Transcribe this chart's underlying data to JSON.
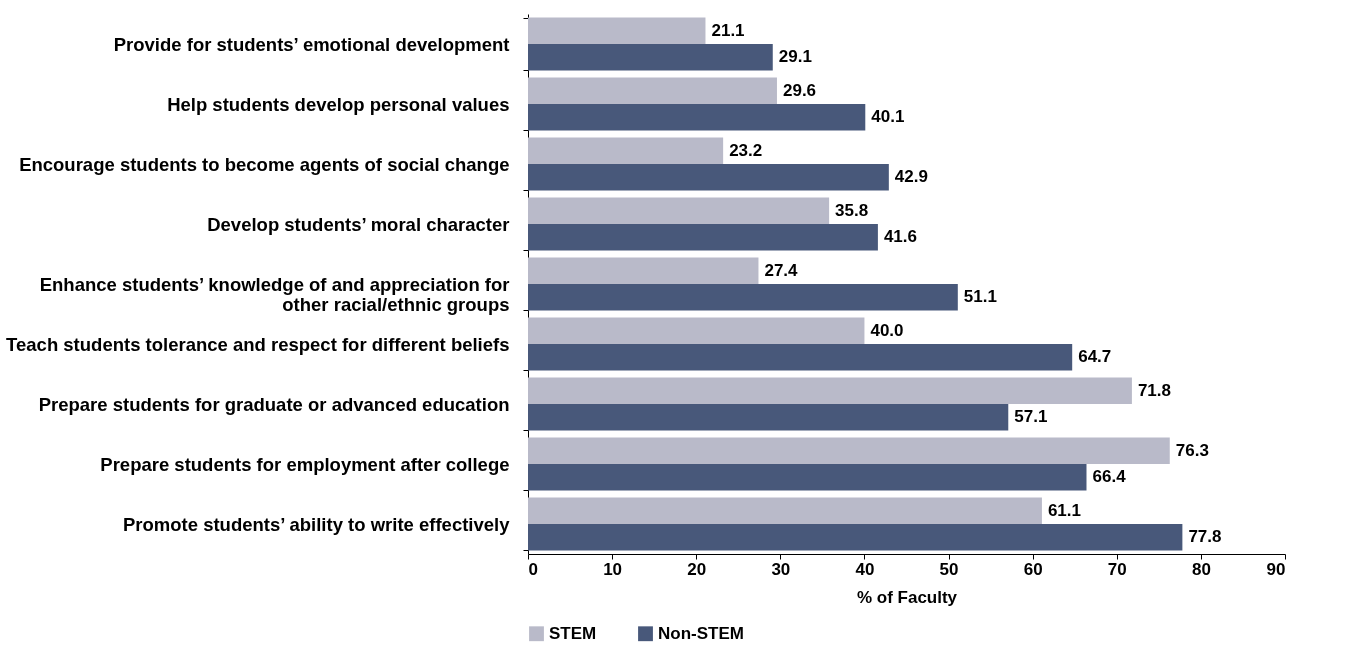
{
  "chart_data": {
    "type": "bar",
    "orientation": "horizontal",
    "xlabel": "% of Faculty",
    "categories": [
      "Provide for students’ emotional development",
      "Help students develop personal values",
      "Encourage students to become agents of social change",
      "Develop students’ moral character",
      "Enhance students’ knowledge of and appreciation for\nother racial/ethnic groups",
      "Teach students tolerance and respect for different beliefs",
      "Prepare students for graduate or advanced education",
      "Prepare students for employment after college",
      "Promote students’ ability to write effectively"
    ],
    "series": [
      {
        "name": "STEM",
        "color": "#b9bac9",
        "values": [
          21.1,
          29.6,
          23.2,
          35.8,
          27.4,
          40.0,
          71.8,
          76.3,
          61.1
        ]
      },
      {
        "name": "Non-STEM",
        "color": "#48587a",
        "values": [
          29.1,
          40.1,
          42.9,
          41.6,
          51.1,
          64.7,
          57.1,
          66.4,
          77.8
        ]
      }
    ],
    "value_labels": [
      [
        "21.1",
        "29.6",
        "23.2",
        "35.8",
        "27.4",
        "40.0",
        "71.8",
        "76.3",
        "61.1"
      ],
      [
        "29.1",
        "40.1",
        "42.9",
        "41.6",
        "51.1",
        "64.7",
        "57.1",
        "66.4",
        "77.8"
      ]
    ],
    "xlim": [
      0,
      90
    ],
    "xticks": [
      0,
      10,
      20,
      30,
      40,
      50,
      60,
      70,
      80,
      90
    ],
    "grid": false,
    "legend": "bottom"
  }
}
